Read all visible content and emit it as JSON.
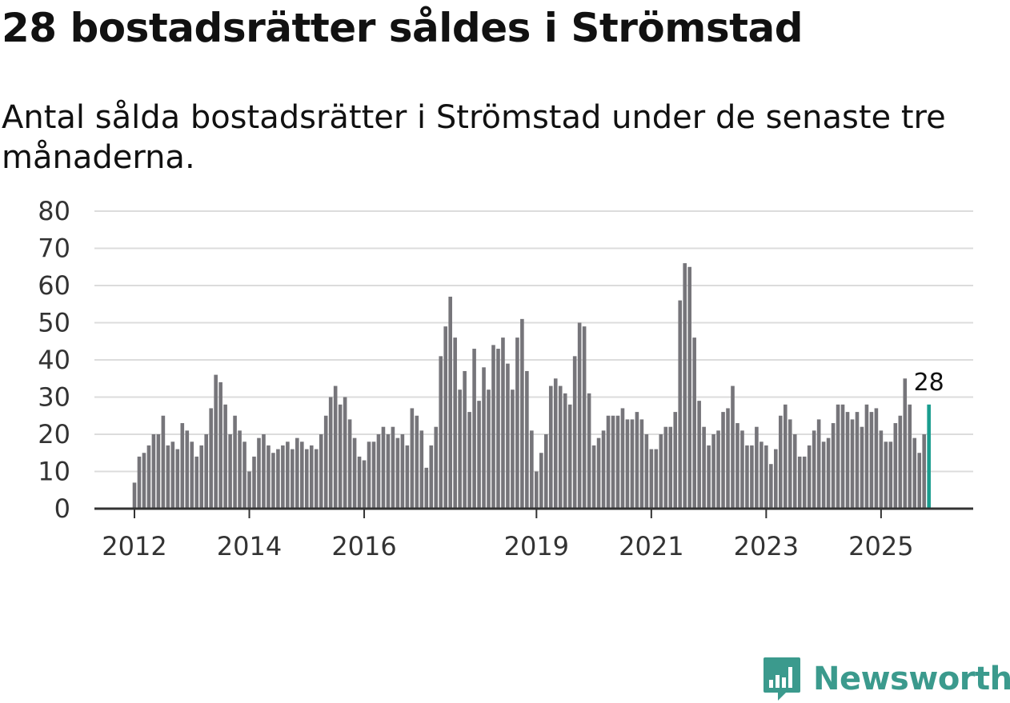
{
  "title": "28 bostadsrätter såldes i Strömstad",
  "subtitle": "Antal sålda bostadsrätter i Strömstad under de senaste tre månaderna.",
  "brand": {
    "name": "Newsworthy",
    "color": "#3b9a8d"
  },
  "chart_data": {
    "type": "bar",
    "title": "28 bostadsrätter såldes i Strömstad",
    "xlabel": "",
    "ylabel": "",
    "ylim": [
      0,
      80
    ],
    "y_ticks": [
      "0",
      "10",
      "20",
      "30",
      "40",
      "50",
      "60",
      "70",
      "80"
    ],
    "x_ticks": [
      {
        "label": "2012",
        "index": 0
      },
      {
        "label": "2014",
        "index": 24
      },
      {
        "label": "2016",
        "index": 48
      },
      {
        "label": "2019",
        "index": 84
      },
      {
        "label": "2021",
        "index": 108
      },
      {
        "label": "2023",
        "index": 132
      },
      {
        "label": "2025",
        "index": 156
      }
    ],
    "bar_color": "#76757a",
    "highlight_color": "#1a9d8f",
    "highlight_label": "28",
    "values": [
      7,
      14,
      15,
      17,
      20,
      20,
      25,
      17,
      18,
      16,
      23,
      21,
      18,
      14,
      17,
      20,
      27,
      36,
      34,
      28,
      20,
      25,
      21,
      18,
      10,
      14,
      19,
      20,
      17,
      15,
      16,
      17,
      18,
      16,
      19,
      18,
      16,
      17,
      16,
      20,
      25,
      30,
      33,
      28,
      30,
      24,
      19,
      14,
      13,
      18,
      18,
      20,
      22,
      20,
      22,
      19,
      20,
      17,
      27,
      25,
      21,
      11,
      17,
      22,
      41,
      49,
      57,
      46,
      32,
      37,
      26,
      43,
      29,
      38,
      32,
      44,
      43,
      46,
      39,
      32,
      46,
      51,
      37,
      21,
      10,
      15,
      20,
      33,
      35,
      33,
      31,
      28,
      41,
      50,
      49,
      31,
      17,
      19,
      21,
      25,
      25,
      25,
      27,
      24,
      24,
      26,
      24,
      20,
      16,
      16,
      20,
      22,
      22,
      26,
      56,
      66,
      65,
      46,
      29,
      22,
      17,
      20,
      21,
      26,
      27,
      33,
      23,
      21,
      17,
      17,
      22,
      18,
      17,
      12,
      16,
      25,
      28,
      24,
      20,
      14,
      14,
      17,
      21,
      24,
      18,
      19,
      23,
      28,
      28,
      26,
      24,
      26,
      22,
      28,
      26,
      27,
      21,
      18,
      18,
      23,
      25,
      35,
      28,
      19,
      15,
      20,
      28
    ]
  }
}
